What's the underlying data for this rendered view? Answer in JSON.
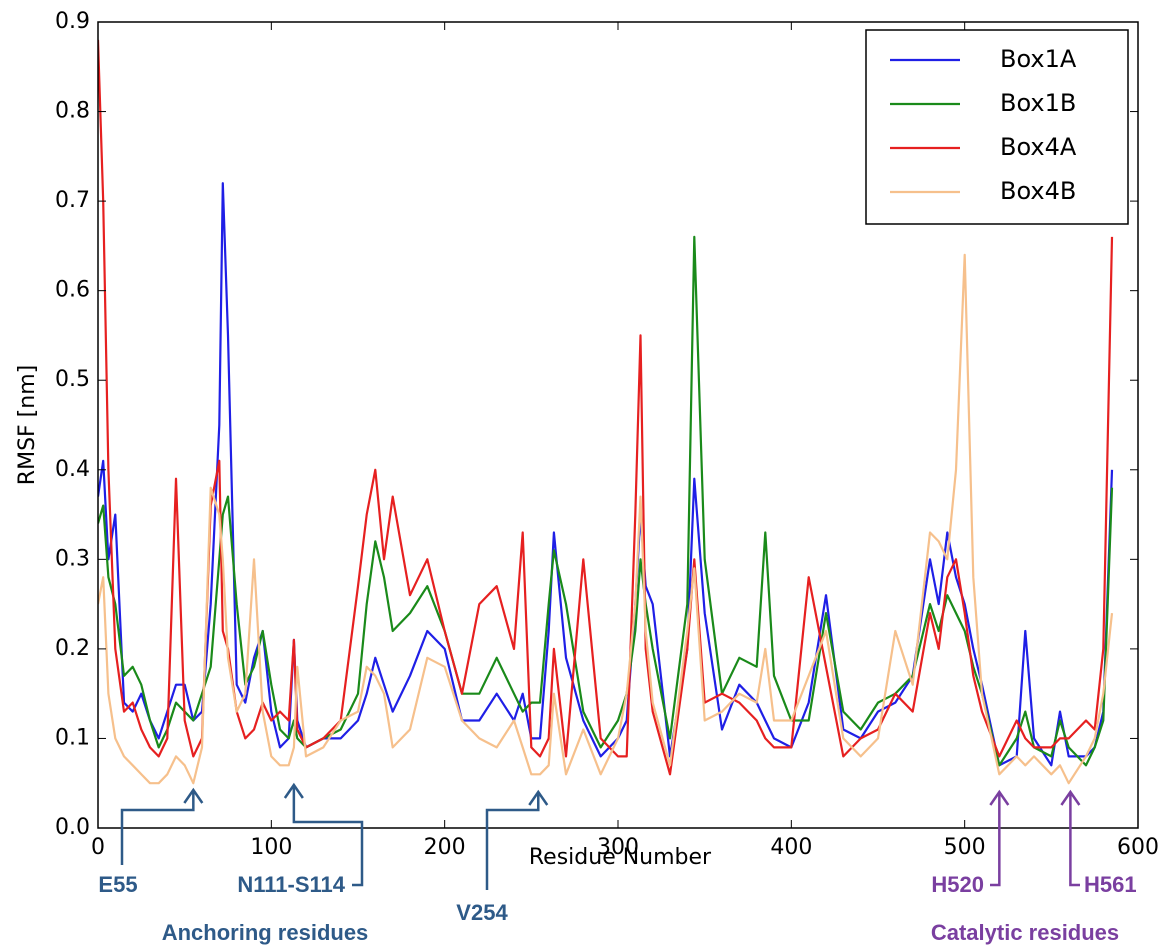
{
  "chart_data": {
    "type": "line",
    "xlabel": "Residue Number",
    "ylabel": "RMSF [nm]",
    "xlim": [
      0,
      600
    ],
    "xticks": [
      0,
      100,
      200,
      300,
      400,
      500,
      600
    ],
    "ylim": [
      0,
      0.9
    ],
    "yticks": [
      {
        "value": 0,
        "label": "0.0"
      },
      0.1,
      0.2,
      0.3,
      0.4,
      0.5,
      0.6,
      0.7,
      0.8,
      0.9
    ],
    "legend": "upper right",
    "x": [
      0,
      3,
      6,
      10,
      15,
      20,
      25,
      30,
      35,
      40,
      45,
      50,
      55,
      60,
      65,
      70,
      72,
      75,
      80,
      85,
      90,
      95,
      100,
      105,
      110,
      113,
      115,
      120,
      130,
      140,
      150,
      155,
      160,
      165,
      170,
      180,
      190,
      200,
      210,
      220,
      230,
      240,
      245,
      250,
      255,
      260,
      263,
      270,
      280,
      290,
      300,
      305,
      310,
      313,
      316,
      320,
      330,
      340,
      344,
      350,
      360,
      370,
      380,
      385,
      390,
      400,
      410,
      420,
      430,
      440,
      450,
      460,
      470,
      480,
      485,
      490,
      495,
      500,
      505,
      510,
      520,
      530,
      535,
      540,
      550,
      555,
      560,
      570,
      575,
      580,
      585
    ],
    "series": [
      {
        "name": "Box1A",
        "color": "#1f1fe6",
        "values": [
          0.37,
          0.41,
          0.3,
          0.35,
          0.14,
          0.13,
          0.15,
          0.12,
          0.1,
          0.13,
          0.16,
          0.16,
          0.12,
          0.13,
          0.25,
          0.45,
          0.72,
          0.55,
          0.16,
          0.14,
          0.19,
          0.22,
          0.13,
          0.09,
          0.1,
          0.21,
          0.12,
          0.09,
          0.1,
          0.1,
          0.12,
          0.15,
          0.19,
          0.16,
          0.13,
          0.17,
          0.22,
          0.2,
          0.12,
          0.12,
          0.15,
          0.12,
          0.15,
          0.1,
          0.1,
          0.22,
          0.33,
          0.19,
          0.12,
          0.08,
          0.1,
          0.12,
          0.25,
          0.35,
          0.27,
          0.25,
          0.08,
          0.2,
          0.39,
          0.24,
          0.11,
          0.16,
          0.14,
          0.12,
          0.1,
          0.09,
          0.14,
          0.26,
          0.11,
          0.1,
          0.13,
          0.14,
          0.17,
          0.3,
          0.25,
          0.33,
          0.28,
          0.25,
          0.2,
          0.16,
          0.07,
          0.08,
          0.22,
          0.1,
          0.07,
          0.13,
          0.08,
          0.08,
          0.09,
          0.13,
          0.4
        ]
      },
      {
        "name": "Box1B",
        "color": "#1a8a1a",
        "values": [
          0.34,
          0.36,
          0.28,
          0.25,
          0.17,
          0.18,
          0.16,
          0.12,
          0.09,
          0.11,
          0.14,
          0.13,
          0.12,
          0.15,
          0.18,
          0.3,
          0.35,
          0.37,
          0.25,
          0.16,
          0.18,
          0.22,
          0.16,
          0.11,
          0.1,
          0.12,
          0.1,
          0.09,
          0.1,
          0.11,
          0.15,
          0.25,
          0.32,
          0.28,
          0.22,
          0.24,
          0.27,
          0.22,
          0.15,
          0.15,
          0.19,
          0.15,
          0.13,
          0.14,
          0.14,
          0.25,
          0.31,
          0.25,
          0.13,
          0.09,
          0.12,
          0.15,
          0.22,
          0.3,
          0.25,
          0.2,
          0.1,
          0.25,
          0.66,
          0.3,
          0.15,
          0.19,
          0.18,
          0.33,
          0.17,
          0.12,
          0.12,
          0.24,
          0.13,
          0.11,
          0.14,
          0.15,
          0.17,
          0.25,
          0.22,
          0.26,
          0.24,
          0.22,
          0.18,
          0.15,
          0.07,
          0.1,
          0.13,
          0.09,
          0.08,
          0.12,
          0.09,
          0.07,
          0.09,
          0.12,
          0.38
        ]
      },
      {
        "name": "Box4A",
        "color": "#e62020",
        "values": [
          0.88,
          0.7,
          0.4,
          0.2,
          0.13,
          0.14,
          0.11,
          0.09,
          0.08,
          0.1,
          0.39,
          0.12,
          0.08,
          0.1,
          0.36,
          0.41,
          0.22,
          0.2,
          0.13,
          0.1,
          0.11,
          0.14,
          0.12,
          0.13,
          0.12,
          0.21,
          0.11,
          0.09,
          0.1,
          0.12,
          0.27,
          0.35,
          0.4,
          0.3,
          0.37,
          0.26,
          0.3,
          0.22,
          0.15,
          0.25,
          0.27,
          0.2,
          0.33,
          0.09,
          0.08,
          0.1,
          0.2,
          0.08,
          0.3,
          0.1,
          0.08,
          0.08,
          0.35,
          0.55,
          0.2,
          0.13,
          0.06,
          0.2,
          0.3,
          0.14,
          0.15,
          0.14,
          0.12,
          0.1,
          0.09,
          0.09,
          0.28,
          0.18,
          0.08,
          0.1,
          0.11,
          0.15,
          0.13,
          0.24,
          0.2,
          0.28,
          0.3,
          0.24,
          0.17,
          0.13,
          0.08,
          0.12,
          0.1,
          0.09,
          0.09,
          0.1,
          0.1,
          0.12,
          0.11,
          0.2,
          0.66
        ]
      },
      {
        "name": "Box4B",
        "color": "#f6c08c",
        "values": [
          0.25,
          0.28,
          0.15,
          0.1,
          0.08,
          0.07,
          0.06,
          0.05,
          0.05,
          0.06,
          0.08,
          0.07,
          0.05,
          0.09,
          0.38,
          0.35,
          0.3,
          0.19,
          0.13,
          0.15,
          0.3,
          0.13,
          0.08,
          0.07,
          0.07,
          0.09,
          0.18,
          0.08,
          0.09,
          0.12,
          0.13,
          0.18,
          0.17,
          0.15,
          0.09,
          0.11,
          0.19,
          0.18,
          0.12,
          0.1,
          0.09,
          0.12,
          0.09,
          0.06,
          0.06,
          0.07,
          0.15,
          0.06,
          0.11,
          0.06,
          0.1,
          0.15,
          0.25,
          0.37,
          0.22,
          0.14,
          0.07,
          0.22,
          0.29,
          0.12,
          0.13,
          0.15,
          0.14,
          0.2,
          0.12,
          0.12,
          0.17,
          0.22,
          0.1,
          0.08,
          0.1,
          0.22,
          0.16,
          0.33,
          0.32,
          0.3,
          0.4,
          0.64,
          0.28,
          0.15,
          0.06,
          0.08,
          0.07,
          0.08,
          0.06,
          0.07,
          0.05,
          0.08,
          0.1,
          0.15,
          0.24
        ]
      }
    ],
    "annotations": [
      {
        "text": "E55",
        "x": 55,
        "color": "#2e5a88"
      },
      {
        "text": "N111-S114",
        "x": 113,
        "color": "#2e5a88"
      },
      {
        "text": "V254",
        "x": 254,
        "color": "#2e5a88"
      },
      {
        "text": "H520",
        "x": 520,
        "color": "#7a3fa0"
      },
      {
        "text": "H561",
        "x": 561,
        "color": "#7a3fa0"
      }
    ],
    "group_labels": [
      {
        "text": "Anchoring residues",
        "color": "#2e5a88"
      },
      {
        "text": "Catalytic residues",
        "color": "#7a3fa0"
      }
    ]
  }
}
